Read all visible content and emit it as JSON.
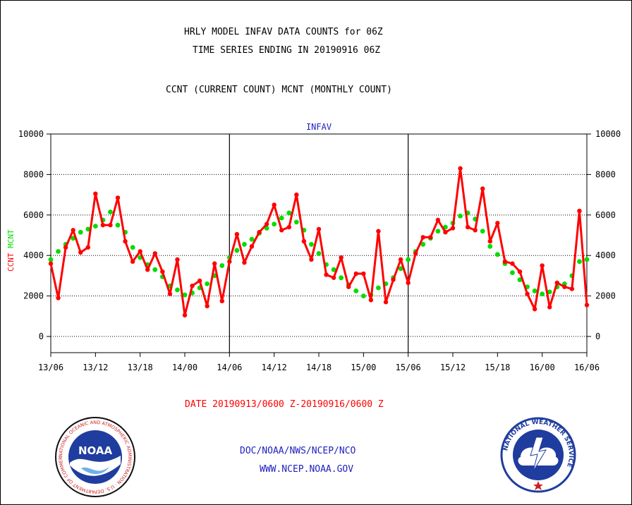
{
  "header": {
    "title_line1": "HRLY MODEL INFAV DATA COUNTS for 06Z",
    "title_line2": "TIME SERIES ENDING IN 20190916 06Z",
    "subtitle": "CCNT (CURRENT COUNT) MCNT (MONTHLY COUNT)"
  },
  "footer": {
    "date_range": "DATE 20190913/0600 Z-20190916/0600 Z",
    "org": "DOC/NOAA/NWS/NCEP/NCO",
    "url": "WWW.NCEP.NOAA.GOV"
  },
  "logos": {
    "noaa_text": "NOAA",
    "noaa_ring": "NATIONAL OCEANIC AND ATMOSPHERIC ADMINISTRATION · U.S. DEPARTMENT OF COMMERCE",
    "nws_ring": "NATIONAL WEATHER SERVICE"
  },
  "colors": {
    "ccnt": "#ff0000",
    "mcnt": "#00dd00",
    "label_blue": "#2020c0",
    "grid": "#000000"
  },
  "chart_data": {
    "type": "line",
    "title": "INFAV",
    "ylabel_left": [
      "CCNT",
      "MCNT"
    ],
    "ylim": [
      -800,
      10000
    ],
    "yticks": [
      0,
      2000,
      4000,
      6000,
      8000,
      10000
    ],
    "x_start_hours": 0,
    "x_end_hours": 72,
    "xtick_labels": [
      "13/06",
      "13/12",
      "13/18",
      "14/00",
      "14/06",
      "14/12",
      "14/18",
      "15/00",
      "15/06",
      "15/12",
      "15/18",
      "16/00",
      "16/06"
    ],
    "grid": "horizontal dotted at y ticks, vertical solid at day boundaries",
    "series": [
      {
        "name": "CCNT",
        "color": "#ff0000",
        "values": [
          3600,
          1900,
          4400,
          5250,
          4150,
          4400,
          7050,
          5500,
          5500,
          6850,
          4700,
          3700,
          4200,
          3300,
          4100,
          3200,
          2100,
          3800,
          1050,
          2500,
          2750,
          1500,
          3600,
          1750,
          3700,
          5050,
          3650,
          4450,
          5150,
          5550,
          6500,
          5250,
          5400,
          7000,
          4700,
          3800,
          5300,
          3050,
          2900,
          3900,
          2450,
          3100,
          3100,
          1800,
          5200,
          1700,
          2800,
          3800,
          2650,
          4100,
          4900,
          4900,
          5750,
          5150,
          5350,
          8300,
          5400,
          5250,
          7300,
          4700,
          5600,
          3700,
          3600,
          3200,
          2100,
          1350,
          3500,
          1450,
          2650,
          2450,
          2350,
          6200,
          1550
        ]
      },
      {
        "name": "MCNT",
        "color": "#00dd00",
        "values": [
          3800,
          4200,
          4550,
          4850,
          5150,
          5300,
          5450,
          5750,
          6150,
          5500,
          5150,
          4400,
          3900,
          3550,
          3300,
          2950,
          2500,
          2300,
          2050,
          2150,
          2400,
          2600,
          3000,
          3500,
          3900,
          4250,
          4550,
          4800,
          5100,
          5350,
          5550,
          5850,
          6100,
          5650,
          5250,
          4550,
          4100,
          3550,
          3300,
          2900,
          2550,
          2250,
          2000,
          2050,
          2400,
          2600,
          2900,
          3350,
          3800,
          4200,
          4550,
          4850,
          5200,
          5400,
          5600,
          5950,
          6100,
          5800,
          5200,
          4450,
          4050,
          3600,
          3150,
          2800,
          2450,
          2250,
          2100,
          2200,
          2450,
          2600,
          3000,
          3700,
          3800
        ]
      }
    ]
  }
}
